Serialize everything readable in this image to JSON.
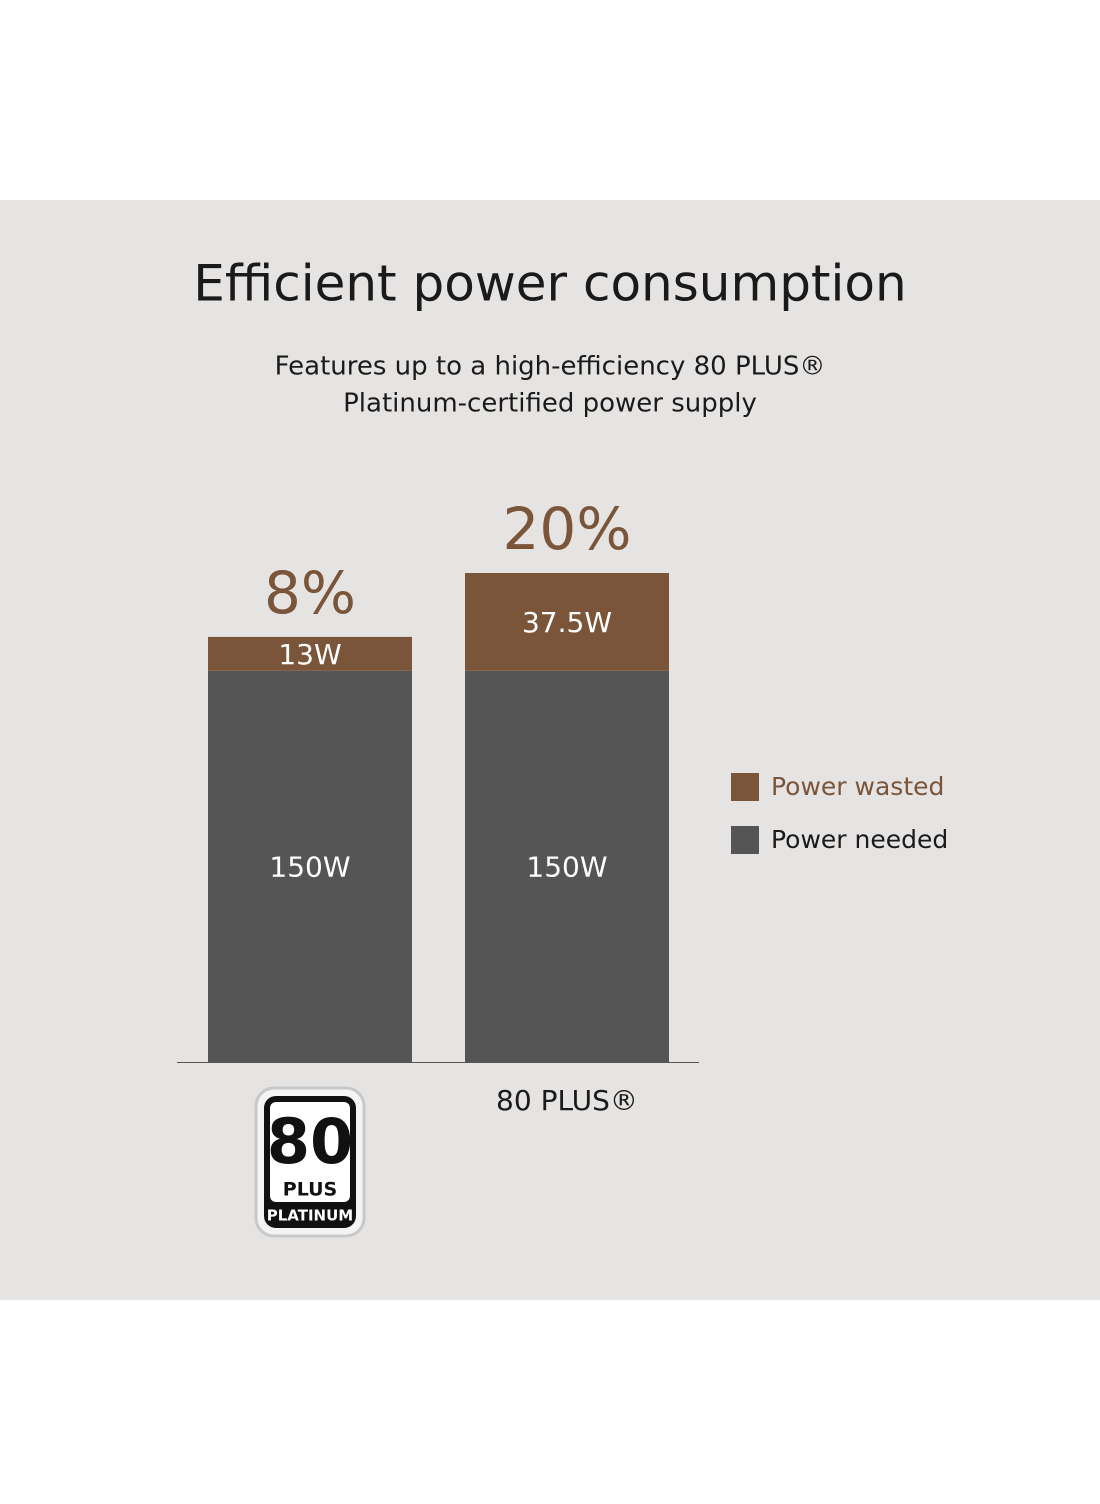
{
  "chart_data": {
    "type": "bar",
    "stacked": true,
    "title": "Efficient power consumption",
    "subtitle": [
      "Features up to a high-efficiency 80 PLUS®",
      "Platinum-certified power supply"
    ],
    "categories": [
      null,
      "80 PLUS®"
    ],
    "badge": {
      "number": "80",
      "plus": "PLUS",
      "tier": "PLATINUM"
    },
    "annotations": [
      "8%",
      "20%"
    ],
    "series": [
      {
        "name": "Power needed",
        "color": "#555555",
        "values": [
          150,
          150
        ],
        "value_labels": [
          "150W",
          "150W"
        ]
      },
      {
        "name": "Power wasted",
        "color": "#7a5539",
        "values": [
          13,
          37.5
        ],
        "value_labels": [
          "13W",
          "37.5W"
        ]
      }
    ],
    "legend": "right"
  }
}
